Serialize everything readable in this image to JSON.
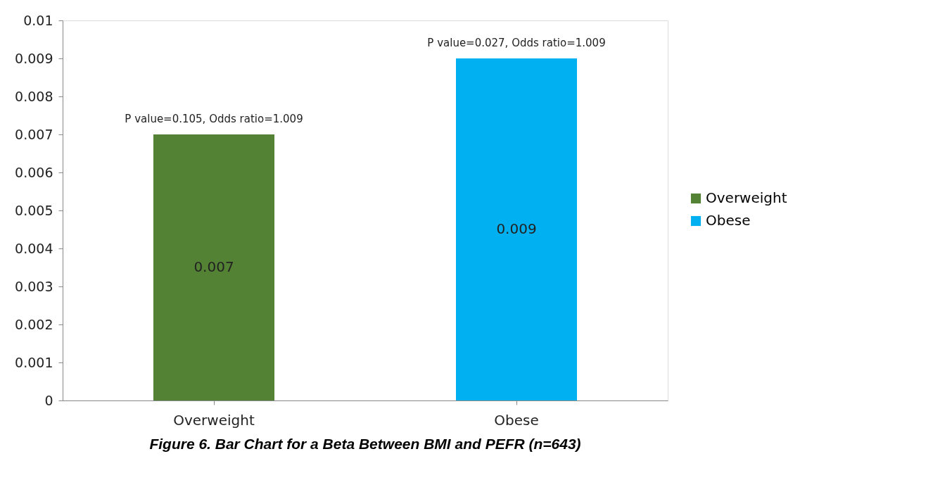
{
  "chart_data": {
    "type": "bar",
    "categories": [
      "Overweight",
      "Obese"
    ],
    "series": [
      {
        "name": "Overweight",
        "color": "#548235",
        "values": [
          0.007,
          null
        ]
      },
      {
        "name": "Obese",
        "color": "#00b0f0",
        "values": [
          null,
          0.009
        ]
      }
    ],
    "ylim": [
      0,
      0.01
    ],
    "yticks": [
      0,
      0.001,
      0.002,
      0.003,
      0.004,
      0.005,
      0.006,
      0.007,
      0.008,
      0.009,
      0.01
    ],
    "data_labels": true,
    "legend": "right",
    "grid": false,
    "annotations": [
      {
        "text": "P value=0.105, Odds ratio=1.009",
        "x": "Overweight",
        "y": 0.007
      },
      {
        "text": "P value=0.027, Odds ratio=1.009",
        "x": "Obese",
        "y": 0.009
      },
      "Figure 6. Bar Chart for a Beta Between BMI and PEFR (n=643)"
    ]
  }
}
